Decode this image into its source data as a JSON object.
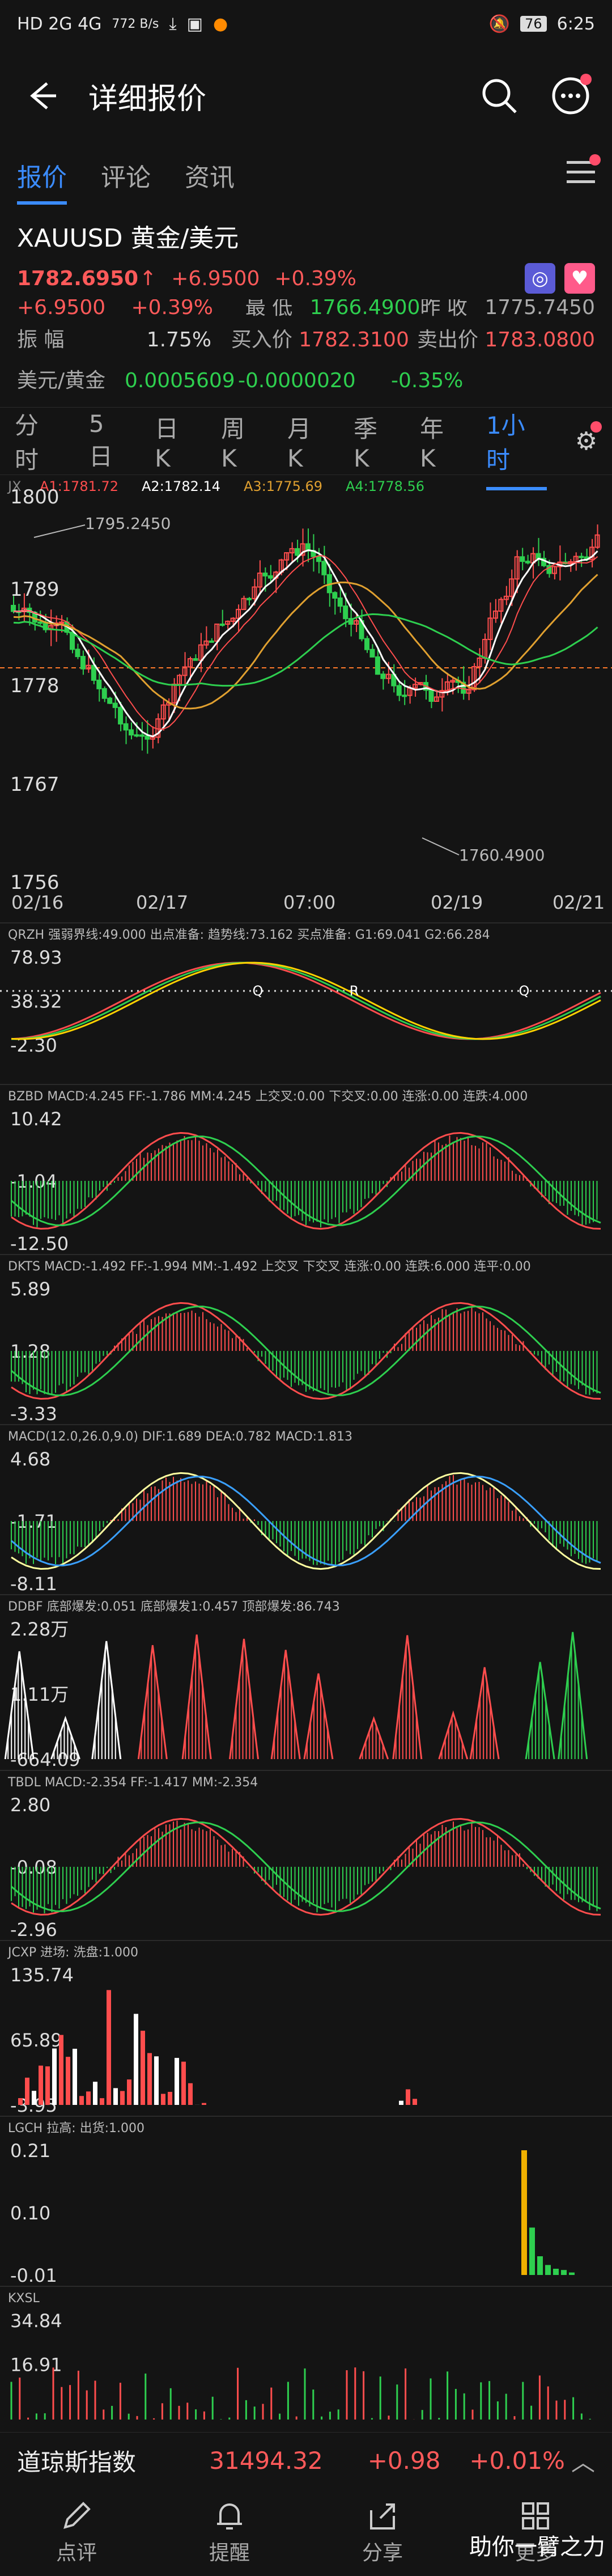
{
  "status": {
    "signal": "HD 2G 4G",
    "speed": "772 B/s",
    "battery": "76",
    "time": "6:25"
  },
  "header": {
    "title": "详细报价"
  },
  "tabs": [
    "报价",
    "评论",
    "资讯"
  ],
  "quote": {
    "symbol": "XAUUSD 黄金/美元",
    "price": "1782.6950",
    "arrow": "↑",
    "change": "+6.9500",
    "pct": "+0.39%",
    "row_partial": {
      "a": "+6.9500",
      "b": "+0.39%",
      "c": "最 低",
      "d": "1766.4900",
      "e": "昨 收",
      "f": "1775.7450"
    },
    "amplitude_label": "振 幅",
    "amplitude": "1.75%",
    "buy_label": "买入价",
    "buy": "1782.3100",
    "sell_label": "卖出价",
    "sell": "1783.0800",
    "cross_label": "美元/黄金",
    "cross": "0.0005609",
    "cross_change": "-0.0000020",
    "cross_pct": "-0.35%"
  },
  "periods": [
    "分时",
    "5日",
    "日K",
    "周K",
    "月K",
    "季K",
    "年K",
    "1小时"
  ],
  "charts": {
    "jx": {
      "label": "JX",
      "a1": "A1:1781.72",
      "a2": "A2:1782.14",
      "a3": "A3:1775.69",
      "a4": "A4:1778.56",
      "y": [
        "1800",
        "1789",
        "1778",
        "1767",
        "1756"
      ],
      "high": "1795.2450",
      "low": "1760.4900",
      "x": [
        "02/16",
        "02/17",
        "07:00",
        "02/19",
        "02/21"
      ]
    },
    "qrzh": {
      "text": "QRZH 强弱界线:49.000 出点准备: 趋势线:73.162 买点准备: G1:69.041 G2:66.284",
      "y": [
        "78.93",
        "38.32",
        "-2.30"
      ],
      "markers": [
        "Q",
        "R",
        "Q"
      ]
    },
    "bzbd": {
      "text": "BZBD MACD:4.245 FF:-1.786 MM:4.245 上交叉:0.00 下交叉:0.00 连涨:0.00 连跌:4.000",
      "y": [
        "10.42",
        "-1.04",
        "-12.50"
      ]
    },
    "dkts": {
      "text": "DKTS MACD:-1.492 FF:-1.994 MM:-1.492 上交叉 下交叉 连涨:0.00 连跌:6.000 连平:0.00",
      "y": [
        "5.89",
        "1.28",
        "-3.33"
      ]
    },
    "macd": {
      "text": "MACD(12.0,26.0,9.0) DIF:1.689 DEA:0.782 MACD:1.813",
      "y": [
        "4.68",
        "-1.71",
        "-8.11"
      ]
    },
    "ddbf": {
      "text": "DDBF 底部爆发:0.051 底部爆发1:0.457 顶部爆发:86.743",
      "y": [
        "2.28万",
        "1.11万",
        "-664.09"
      ]
    },
    "tbdl": {
      "text": "TBDL MACD:-2.354 FF:-1.417 MM:-2.354",
      "y": [
        "2.80",
        "-0.08",
        "-2.96"
      ]
    },
    "jcxp": {
      "text": "JCXP 进场: 洗盘:1.000",
      "y": [
        "135.74",
        "65.89",
        "-3.95"
      ]
    },
    "lgch": {
      "text": "LGCH 拉高: 出货:1.000",
      "y": [
        "0.21",
        "0.10",
        "-0.01"
      ]
    },
    "kxsl": {
      "text": "KXSL",
      "y": [
        "34.84",
        "16.91"
      ]
    }
  },
  "index": {
    "name": "道琼斯指数",
    "value": "31494.32",
    "change": "+0.98",
    "pct": "+0.01%"
  },
  "nav": [
    "点评",
    "提醒",
    "分享",
    "更多"
  ],
  "watermark": "助你一臂之力",
  "colors": {
    "up": "#ff5a5a",
    "down": "#2ecf4f",
    "accent": "#3b8cff"
  }
}
